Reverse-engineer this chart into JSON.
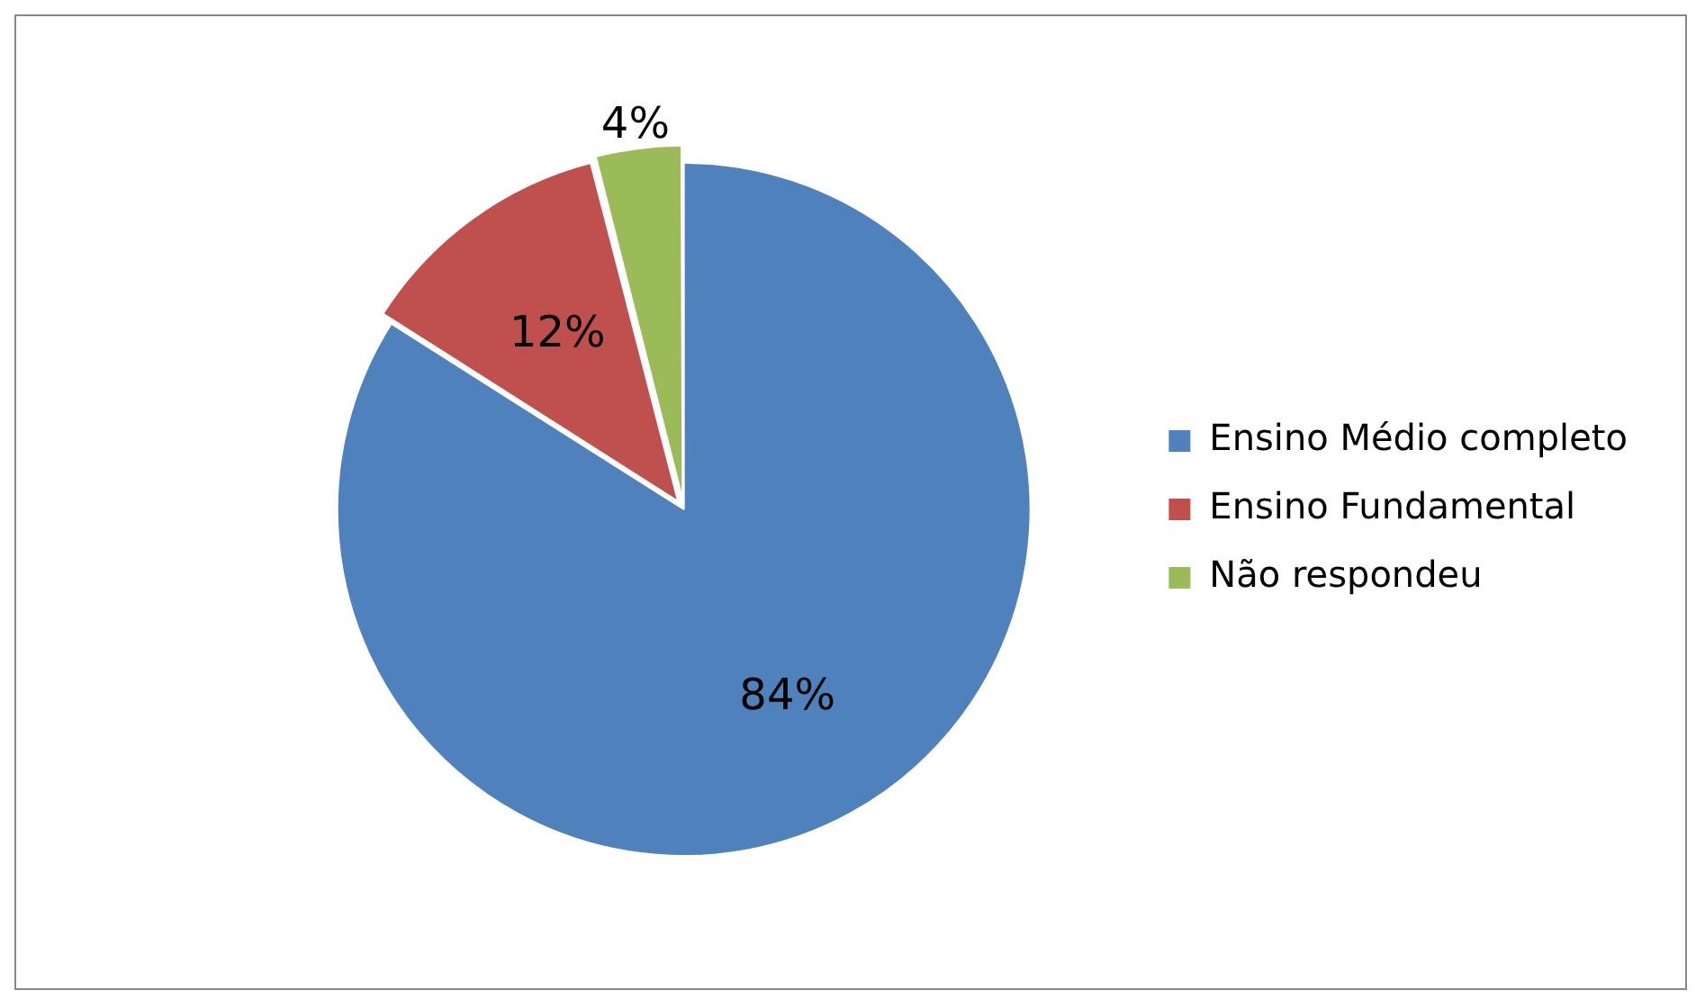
{
  "chart_data": {
    "type": "pie",
    "categories": [
      "Ensino Médio completo",
      "Ensino Fundamental",
      "Não respondeu"
    ],
    "values": [
      84,
      12,
      4
    ],
    "colors": [
      "#4f81bd",
      "#c0504d",
      "#9bbb59"
    ],
    "value_labels": [
      "84%",
      "12%",
      "4%"
    ],
    "legend": "right"
  }
}
